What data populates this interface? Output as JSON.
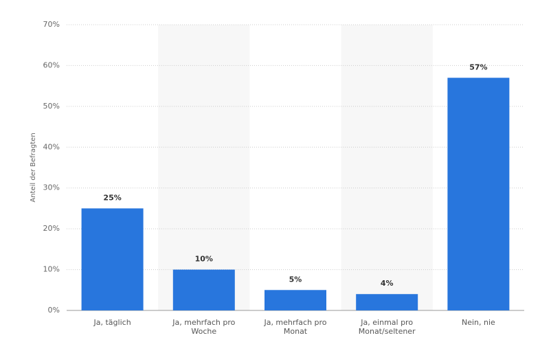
{
  "chart_data": {
    "type": "bar",
    "y_label": "Anteil der Befragten",
    "categories": [
      "Ja, täglich",
      "Ja, mehrfach pro Woche",
      "Ja, mehrfach pro Monat",
      "Ja, einmal pro Monat/seltener",
      "Nein, nie"
    ],
    "values": [
      25,
      10,
      5,
      4,
      57
    ],
    "value_labels": [
      "25%",
      "10%",
      "5%",
      "4%",
      "57%"
    ],
    "color": "#2876dd",
    "ylim": [
      0,
      70
    ],
    "yticks": [
      {
        "value": 0,
        "label": "0%"
      },
      {
        "value": 10,
        "label": "10%"
      },
      {
        "value": 20,
        "label": "20%"
      },
      {
        "value": 30,
        "label": "30%"
      },
      {
        "value": 40,
        "label": "40%"
      },
      {
        "value": 50,
        "label": "50%"
      },
      {
        "value": 60,
        "label": "60%"
      },
      {
        "value": 70,
        "label": "70%"
      }
    ],
    "grid": true
  }
}
